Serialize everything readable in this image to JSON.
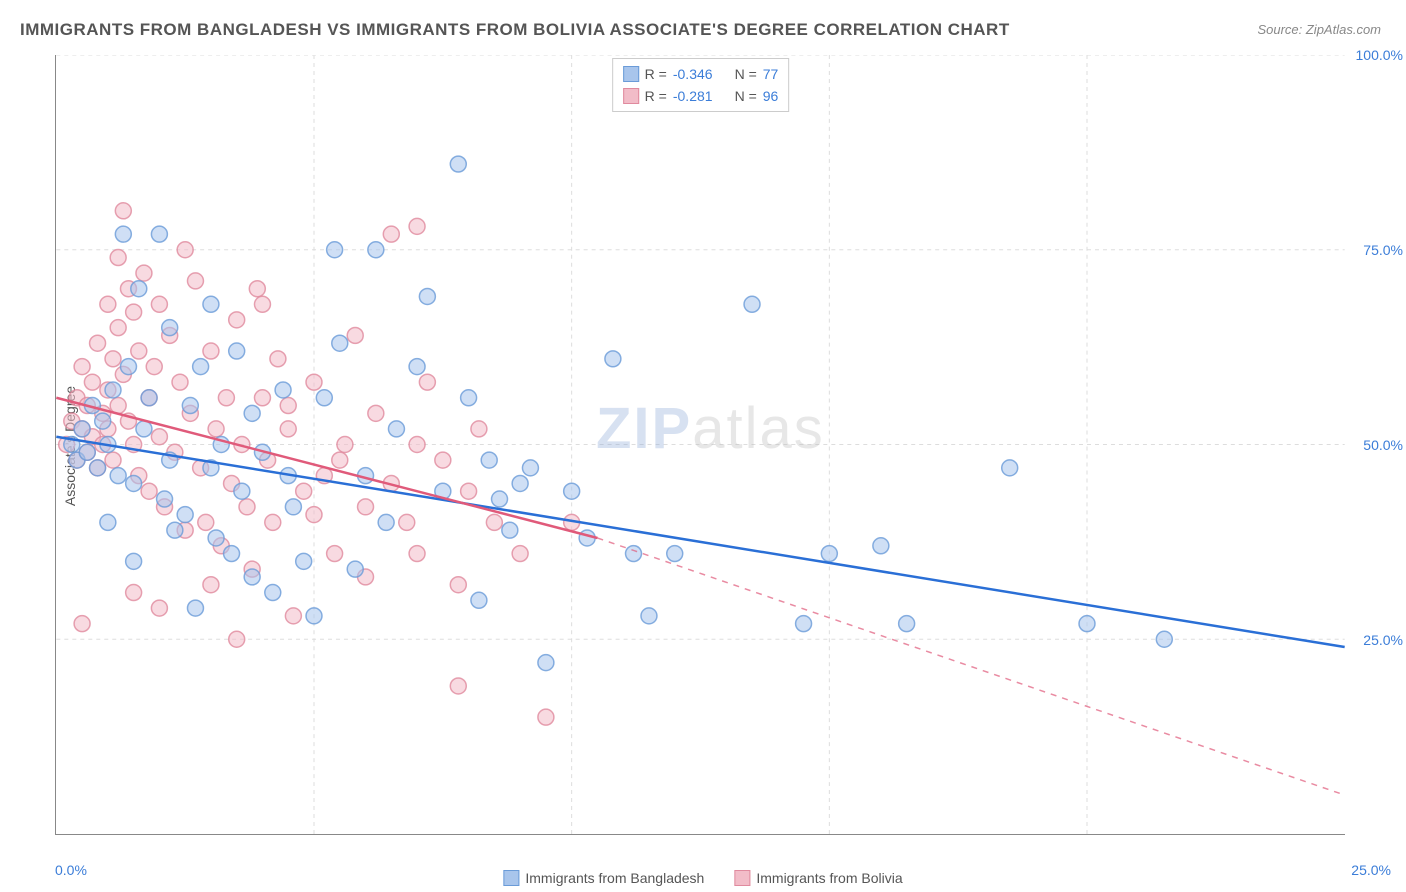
{
  "title": "IMMIGRANTS FROM BANGLADESH VS IMMIGRANTS FROM BOLIVIA ASSOCIATE'S DEGREE CORRELATION CHART",
  "source": "Source: ZipAtlas.com",
  "watermark": {
    "zip": "ZIP",
    "atlas": "atlas"
  },
  "ylabel": "Associate's Degree",
  "chart": {
    "type": "scatter",
    "xlim": [
      0,
      25
    ],
    "ylim": [
      0,
      100
    ],
    "x_tick_left": "0.0%",
    "x_tick_right": "25.0%",
    "y_ticks": [
      {
        "value": 25,
        "label": "25.0%"
      },
      {
        "value": 50,
        "label": "50.0%"
      },
      {
        "value": 75,
        "label": "75.0%"
      },
      {
        "value": 100,
        "label": "100.0%"
      }
    ],
    "x_grid_values": [
      5,
      10,
      15,
      20
    ],
    "background_color": "#ffffff",
    "grid_color": "#dddddd",
    "marker_radius": 8,
    "marker_opacity": 0.55,
    "marker_stroke_width": 1.5,
    "trend_line_width": 2.5
  },
  "series": [
    {
      "name": "Immigrants from Bangladesh",
      "color_fill": "#a8c5ec",
      "color_stroke": "#6a9bd8",
      "trend_color": "#2a6fd6",
      "R": "-0.346",
      "N": "77",
      "trend": {
        "x1": 0,
        "y1": 51,
        "x2": 25,
        "y2": 24
      },
      "points": [
        [
          0.3,
          50
        ],
        [
          0.4,
          48
        ],
        [
          0.5,
          52
        ],
        [
          0.6,
          49
        ],
        [
          0.7,
          55
        ],
        [
          0.8,
          47
        ],
        [
          0.9,
          53
        ],
        [
          1.0,
          50
        ],
        [
          1.1,
          57
        ],
        [
          1.2,
          46
        ],
        [
          1.3,
          77
        ],
        [
          1.4,
          60
        ],
        [
          1.5,
          45
        ],
        [
          1.6,
          70
        ],
        [
          1.7,
          52
        ],
        [
          1.8,
          56
        ],
        [
          2.0,
          77
        ],
        [
          2.1,
          43
        ],
        [
          2.2,
          65
        ],
        [
          2.3,
          39
        ],
        [
          2.5,
          41
        ],
        [
          2.6,
          55
        ],
        [
          2.7,
          29
        ],
        [
          2.8,
          60
        ],
        [
          3.0,
          47
        ],
        [
          3.1,
          38
        ],
        [
          3.2,
          50
        ],
        [
          3.4,
          36
        ],
        [
          3.5,
          62
        ],
        [
          3.6,
          44
        ],
        [
          3.8,
          33
        ],
        [
          4.0,
          49
        ],
        [
          4.2,
          31
        ],
        [
          4.4,
          57
        ],
        [
          4.6,
          42
        ],
        [
          4.8,
          35
        ],
        [
          5.0,
          28
        ],
        [
          5.2,
          56
        ],
        [
          5.4,
          75
        ],
        [
          5.5,
          63
        ],
        [
          5.8,
          34
        ],
        [
          6.0,
          46
        ],
        [
          6.2,
          75
        ],
        [
          6.4,
          40
        ],
        [
          6.6,
          52
        ],
        [
          7.0,
          60
        ],
        [
          7.2,
          69
        ],
        [
          7.5,
          44
        ],
        [
          7.8,
          86
        ],
        [
          8.0,
          56
        ],
        [
          8.2,
          30
        ],
        [
          8.4,
          48
        ],
        [
          8.6,
          43
        ],
        [
          8.8,
          39
        ],
        [
          9.0,
          45
        ],
        [
          9.2,
          47
        ],
        [
          9.5,
          22
        ],
        [
          10.0,
          44
        ],
        [
          10.3,
          38
        ],
        [
          10.8,
          61
        ],
        [
          11.2,
          36
        ],
        [
          11.5,
          28
        ],
        [
          12.0,
          36
        ],
        [
          13.5,
          68
        ],
        [
          14.5,
          27
        ],
        [
          15.0,
          36
        ],
        [
          16.0,
          37
        ],
        [
          16.5,
          27
        ],
        [
          18.5,
          47
        ],
        [
          20.0,
          27
        ],
        [
          21.5,
          25
        ],
        [
          1.0,
          40
        ],
        [
          1.5,
          35
        ],
        [
          2.2,
          48
        ],
        [
          3.0,
          68
        ],
        [
          3.8,
          54
        ],
        [
          4.5,
          46
        ]
      ]
    },
    {
      "name": "Immigrants from Bolivia",
      "color_fill": "#f2bcc8",
      "color_stroke": "#e08a9e",
      "trend_color": "#e05a7a",
      "R": "-0.281",
      "N": "96",
      "trend_solid": {
        "x1": 0,
        "y1": 56,
        "x2": 10.5,
        "y2": 38
      },
      "trend_dashed": {
        "x1": 10.5,
        "y1": 38,
        "x2": 25,
        "y2": 5
      },
      "points": [
        [
          0.2,
          50
        ],
        [
          0.3,
          53
        ],
        [
          0.4,
          48
        ],
        [
          0.4,
          56
        ],
        [
          0.5,
          52
        ],
        [
          0.5,
          60
        ],
        [
          0.6,
          49
        ],
        [
          0.6,
          55
        ],
        [
          0.7,
          51
        ],
        [
          0.7,
          58
        ],
        [
          0.8,
          47
        ],
        [
          0.8,
          63
        ],
        [
          0.9,
          54
        ],
        [
          0.9,
          50
        ],
        [
          1.0,
          57
        ],
        [
          1.0,
          52
        ],
        [
          1.1,
          61
        ],
        [
          1.1,
          48
        ],
        [
          1.2,
          65
        ],
        [
          1.2,
          55
        ],
        [
          1.3,
          59
        ],
        [
          1.3,
          80
        ],
        [
          1.4,
          53
        ],
        [
          1.4,
          70
        ],
        [
          1.5,
          67
        ],
        [
          1.5,
          50
        ],
        [
          1.6,
          62
        ],
        [
          1.6,
          46
        ],
        [
          1.7,
          72
        ],
        [
          1.8,
          56
        ],
        [
          1.8,
          44
        ],
        [
          1.9,
          60
        ],
        [
          2.0,
          68
        ],
        [
          2.0,
          51
        ],
        [
          2.1,
          42
        ],
        [
          2.2,
          64
        ],
        [
          2.3,
          49
        ],
        [
          2.4,
          58
        ],
        [
          2.5,
          39
        ],
        [
          2.6,
          54
        ],
        [
          2.7,
          71
        ],
        [
          2.8,
          47
        ],
        [
          2.9,
          40
        ],
        [
          3.0,
          62
        ],
        [
          3.1,
          52
        ],
        [
          3.2,
          37
        ],
        [
          3.3,
          56
        ],
        [
          3.4,
          45
        ],
        [
          3.5,
          66
        ],
        [
          3.6,
          50
        ],
        [
          3.7,
          42
        ],
        [
          3.8,
          34
        ],
        [
          3.9,
          70
        ],
        [
          4.0,
          56
        ],
        [
          4.1,
          48
        ],
        [
          4.2,
          40
        ],
        [
          4.3,
          61
        ],
        [
          4.5,
          52
        ],
        [
          4.6,
          28
        ],
        [
          4.8,
          44
        ],
        [
          5.0,
          58
        ],
        [
          5.2,
          46
        ],
        [
          5.4,
          36
        ],
        [
          5.6,
          50
        ],
        [
          5.8,
          64
        ],
        [
          6.0,
          42
        ],
        [
          6.2,
          54
        ],
        [
          6.5,
          77
        ],
        [
          6.8,
          40
        ],
        [
          7.0,
          78
        ],
        [
          7.0,
          36
        ],
        [
          7.2,
          58
        ],
        [
          7.5,
          48
        ],
        [
          7.8,
          19
        ],
        [
          7.8,
          32
        ],
        [
          8.0,
          44
        ],
        [
          8.2,
          52
        ],
        [
          8.5,
          40
        ],
        [
          9.0,
          36
        ],
        [
          9.5,
          15
        ],
        [
          10.0,
          40
        ],
        [
          0.5,
          27
        ],
        [
          1.0,
          68
        ],
        [
          1.2,
          74
        ],
        [
          1.5,
          31
        ],
        [
          2.0,
          29
        ],
        [
          2.5,
          75
        ],
        [
          3.0,
          32
        ],
        [
          3.5,
          25
        ],
        [
          4.0,
          68
        ],
        [
          4.5,
          55
        ],
        [
          5.0,
          41
        ],
        [
          5.5,
          48
        ],
        [
          6.0,
          33
        ],
        [
          6.5,
          45
        ],
        [
          7.0,
          50
        ]
      ]
    }
  ],
  "legend_top": {
    "R_label": "R =",
    "N_label": "N ="
  },
  "legend_bottom_labels": [
    "Immigrants from Bangladesh",
    "Immigrants from Bolivia"
  ]
}
